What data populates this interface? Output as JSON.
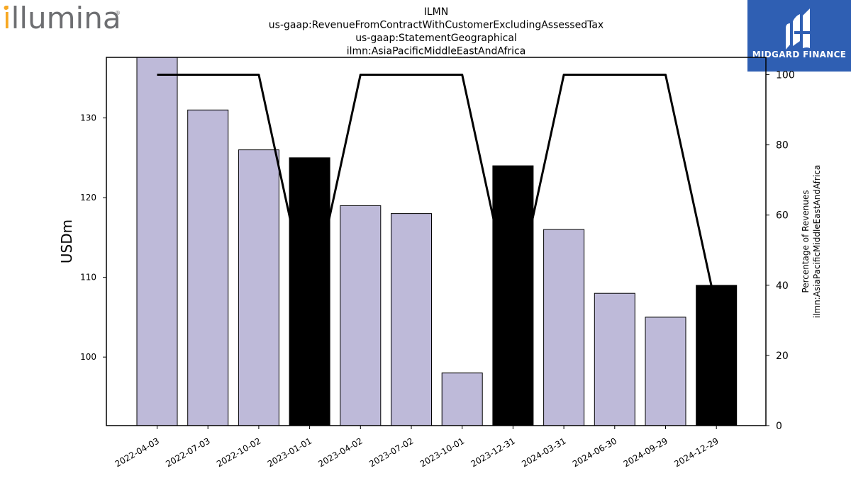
{
  "logo": {
    "text": "illumina",
    "mark": "®",
    "accent_color": "#f7a823",
    "text_color": "#6d6e71"
  },
  "badge": {
    "text": "MIDGARD FINANCE",
    "background": "#2f5fb3",
    "icon": "midgard-logo-icon"
  },
  "chart_data": {
    "type": "bar",
    "title_lines": [
      "ILMN",
      "us-gaap:RevenueFromContractWithCustomerExcludingAssessedTax",
      "us-gaap:StatementGeographical",
      "ilmn:AsiaPacificMiddleEastAndAfrica"
    ],
    "ylabel": "USDm",
    "y2label_lines": [
      "Percentage of Revenues",
      "ilmn:AsiaPacificMiddleEastAndAfrica"
    ],
    "categories": [
      "2022-04-03",
      "2022-07-03",
      "2022-10-02",
      "2023-01-01",
      "2023-04-02",
      "2023-07-02",
      "2023-10-01",
      "2023-12-31",
      "2024-03-31",
      "2024-06-30",
      "2024-09-29",
      "2024-12-29"
    ],
    "values": [
      138,
      131,
      126,
      125,
      119,
      118,
      98,
      124,
      116,
      108,
      105,
      109
    ],
    "bar_colors": [
      "#bebad9",
      "#bebad9",
      "#bebad9",
      "#000000",
      "#bebad9",
      "#bebad9",
      "#bebad9",
      "#000000",
      "#bebad9",
      "#bebad9",
      "#bebad9",
      "#000000"
    ],
    "ylim": [
      91.4,
      137.6
    ],
    "yticks": [
      100,
      110,
      120,
      130
    ],
    "percent_series": {
      "values": [
        100,
        100,
        100,
        33.3,
        100,
        100,
        100,
        33.3,
        100,
        100,
        100,
        33.3
      ],
      "color": "#000000",
      "ylim": [
        0,
        100.0
      ],
      "yticks": [
        0,
        20,
        40,
        60,
        80,
        100
      ]
    },
    "grid": false
  }
}
